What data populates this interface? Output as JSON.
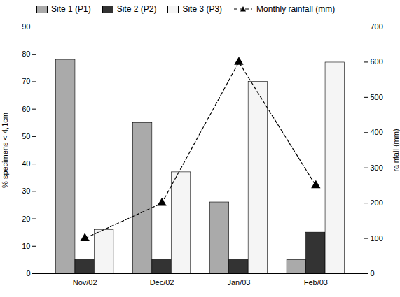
{
  "chart_data": {
    "type": "bar",
    "categories": [
      "Nov/02",
      "Dec/02",
      "Jan/03",
      "Feb/03"
    ],
    "series": [
      {
        "name": "Site 1 (P1)",
        "color": "#aaaaaa",
        "values": [
          78,
          55,
          26,
          5
        ]
      },
      {
        "name": "Site 2 (P2)",
        "color": "#333333",
        "values": [
          5,
          5,
          5,
          15
        ]
      },
      {
        "name": "Site 3 (P3)",
        "color": "#f5f5f5",
        "values": [
          16,
          37,
          70,
          77
        ]
      },
      {
        "name": "Monthly rainfall (mm)",
        "type": "line",
        "axis": "y2",
        "color": "#000000",
        "marker": "triangle",
        "line_style": "dashed",
        "values": [
          100,
          200,
          600,
          250
        ]
      }
    ],
    "ylim": [
      0,
      90
    ],
    "yticks": [
      0,
      10,
      20,
      30,
      40,
      50,
      60,
      70,
      80,
      90
    ],
    "y2lim": [
      0,
      700
    ],
    "y2ticks": [
      0,
      100,
      200,
      300,
      400,
      500,
      600,
      700
    ],
    "ylabel": "% specimens < 4,1cm",
    "y2label": "rainfall (mm)",
    "grid": false,
    "legend": "upper left"
  }
}
